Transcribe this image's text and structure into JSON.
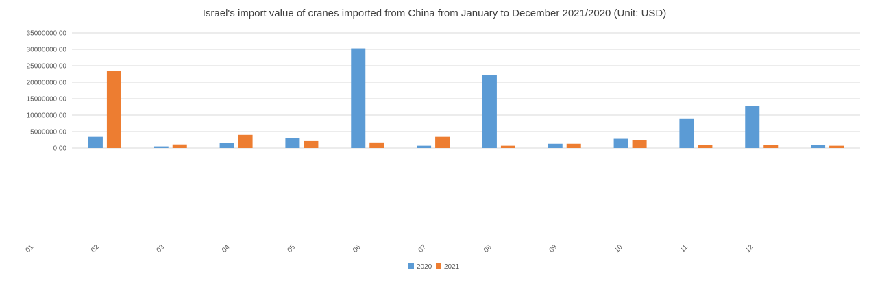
{
  "chart_data": {
    "type": "bar",
    "title": "Israel's import value of cranes imported from China from January to December 2021/2020 (Unit: USD)",
    "categories": [
      "01",
      "02",
      "03",
      "04",
      "05",
      "06",
      "07",
      "08",
      "09",
      "10",
      "11",
      "12"
    ],
    "series": [
      {
        "name": "2020",
        "color": "#5b9bd5",
        "values": [
          3400000,
          500000,
          1500000,
          3000000,
          30300000,
          700000,
          22200000,
          1300000,
          2800000,
          9000000,
          12800000,
          900000
        ]
      },
      {
        "name": "2021",
        "color": "#ed7d31",
        "values": [
          23400000,
          1100000,
          4000000,
          2100000,
          1700000,
          3400000,
          700000,
          1300000,
          2400000,
          900000,
          900000,
          700000
        ]
      }
    ],
    "yticks": [
      "0.00",
      "5000000.00",
      "10000000.00",
      "15000000.00",
      "20000000.00",
      "25000000.00",
      "30000000.00",
      "35000000.00"
    ],
    "ylim": [
      0,
      35000000
    ],
    "grid": true,
    "legend_position": "bottom"
  }
}
